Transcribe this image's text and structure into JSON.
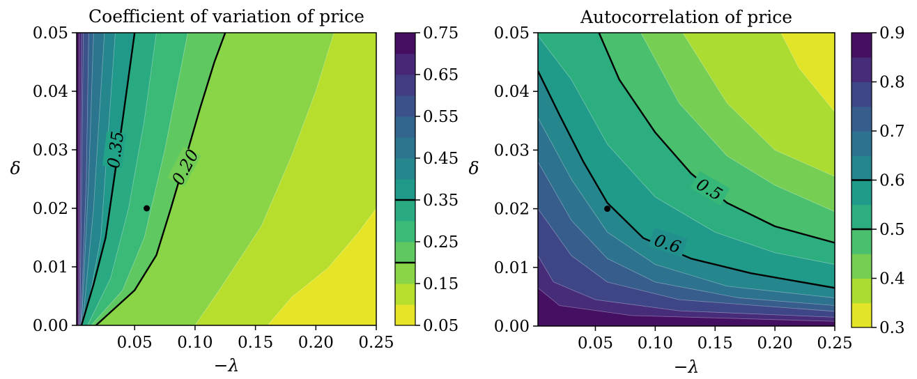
{
  "chart_data": [
    {
      "type": "heatmap",
      "title": "Coefficient of variation of price",
      "xlabel": "−λ",
      "ylabel": "δ",
      "xlim": [
        0.002,
        0.25
      ],
      "ylim": [
        0.0,
        0.05
      ],
      "xticks": [
        "0.05",
        "0.10",
        "0.15",
        "0.20",
        "0.25"
      ],
      "yticks": [
        "0.00",
        "0.01",
        "0.02",
        "0.03",
        "0.04",
        "0.05"
      ],
      "colorbar": {
        "ticks": [
          "0.05",
          "0.15",
          "0.25",
          "0.35",
          "0.45",
          "0.55",
          "0.65",
          "0.75"
        ],
        "range": [
          0.05,
          0.75
        ],
        "step": 0.05,
        "reversed_viridis": true,
        "contour_marks": [
          0.2,
          0.35
        ]
      },
      "contour_lines": [
        {
          "level": 0.35,
          "label": "0.35",
          "points": [
            [
              0.006,
              0.0
            ],
            [
              0.016,
              0.007
            ],
            [
              0.026,
              0.015
            ],
            [
              0.033,
              0.025
            ],
            [
              0.04,
              0.035
            ],
            [
              0.046,
              0.044
            ],
            [
              0.05,
              0.05
            ]
          ]
        },
        {
          "level": 0.2,
          "label": "0.20",
          "points": [
            [
              0.018,
              0.0
            ],
            [
              0.05,
              0.006
            ],
            [
              0.068,
              0.012
            ],
            [
              0.08,
              0.02
            ],
            [
              0.09,
              0.027
            ],
            [
              0.104,
              0.037
            ],
            [
              0.116,
              0.045
            ],
            [
              0.125,
              0.05
            ]
          ]
        }
      ],
      "band_boundaries": [
        {
          "level": 0.7,
          "points": [
            [
              0.0035,
              0.0
            ],
            [
              0.004,
              0.05
            ]
          ]
        },
        {
          "level": 0.65,
          "points": [
            [
              0.0042,
              0.0
            ],
            [
              0.006,
              0.05
            ]
          ]
        },
        {
          "level": 0.6,
          "points": [
            [
              0.0048,
              0.0
            ],
            [
              0.0075,
              0.05
            ]
          ]
        },
        {
          "level": 0.55,
          "points": [
            [
              0.0055,
              0.0
            ],
            [
              0.01,
              0.025
            ],
            [
              0.012,
              0.05
            ]
          ]
        },
        {
          "level": 0.5,
          "points": [
            [
              0.006,
              0.0
            ],
            [
              0.012,
              0.025
            ],
            [
              0.016,
              0.05
            ]
          ]
        },
        {
          "level": 0.45,
          "points": [
            [
              0.0068,
              0.0
            ],
            [
              0.016,
              0.02
            ],
            [
              0.025,
              0.05
            ]
          ]
        },
        {
          "level": 0.4,
          "points": [
            [
              0.0085,
              0.0
            ],
            [
              0.022,
              0.015
            ],
            [
              0.034,
              0.05
            ]
          ]
        },
        {
          "level": 0.35,
          "points": [
            [
              0.006,
              0.0
            ],
            [
              0.016,
              0.007
            ],
            [
              0.026,
              0.015
            ],
            [
              0.033,
              0.025
            ],
            [
              0.04,
              0.035
            ],
            [
              0.046,
              0.044
            ],
            [
              0.05,
              0.05
            ]
          ]
        },
        {
          "level": 0.3,
          "points": [
            [
              0.011,
              0.0
            ],
            [
              0.03,
              0.008
            ],
            [
              0.045,
              0.02
            ],
            [
              0.058,
              0.035
            ],
            [
              0.068,
              0.05
            ]
          ]
        },
        {
          "level": 0.25,
          "points": [
            [
              0.014,
              0.0
            ],
            [
              0.04,
              0.006
            ],
            [
              0.058,
              0.015
            ],
            [
              0.075,
              0.03
            ],
            [
              0.094,
              0.05
            ]
          ]
        },
        {
          "level": 0.2,
          "points": [
            [
              0.018,
              0.0
            ],
            [
              0.05,
              0.006
            ],
            [
              0.068,
              0.012
            ],
            [
              0.08,
              0.02
            ],
            [
              0.09,
              0.027
            ],
            [
              0.104,
              0.037
            ],
            [
              0.116,
              0.045
            ],
            [
              0.125,
              0.05
            ]
          ]
        },
        {
          "level": 0.15,
          "points": [
            [
              0.1,
              0.0
            ],
            [
              0.12,
              0.006
            ],
            [
              0.155,
              0.017
            ],
            [
              0.18,
              0.029
            ],
            [
              0.2,
              0.04
            ],
            [
              0.215,
              0.05
            ]
          ]
        },
        {
          "level": 0.1,
          "points": [
            [
              0.25,
              0.02
            ],
            [
              0.235,
              0.0158
            ],
            [
              0.21,
              0.0098
            ],
            [
              0.18,
              0.0048
            ],
            [
              0.16,
              0.0
            ]
          ]
        }
      ],
      "point": {
        "x": 0.06,
        "y": 0.02
      }
    },
    {
      "type": "heatmap",
      "title": "Autocorrelation of price",
      "xlabel": "−λ",
      "ylabel": "δ",
      "xlim": [
        0.002,
        0.25
      ],
      "ylim": [
        0.0,
        0.05
      ],
      "xticks": [
        "0.05",
        "0.10",
        "0.15",
        "0.20",
        "0.25"
      ],
      "yticks": [
        "0.00",
        "0.01",
        "0.02",
        "0.03",
        "0.04",
        "0.05"
      ],
      "colorbar": {
        "ticks": [
          "0.3",
          "0.4",
          "0.5",
          "0.6",
          "0.7",
          "0.8",
          "0.9"
        ],
        "range": [
          0.3,
          0.9
        ],
        "step": 0.05,
        "reversed_viridis": true,
        "contour_marks": [
          0.5,
          0.6
        ]
      },
      "contour_lines": [
        {
          "level": 0.5,
          "label": "0.5",
          "points": [
            [
              0.053,
              0.05
            ],
            [
              0.07,
              0.042
            ],
            [
              0.1,
              0.033
            ],
            [
              0.13,
              0.026
            ],
            [
              0.16,
              0.021
            ],
            [
              0.2,
              0.017
            ],
            [
              0.25,
              0.0142
            ]
          ]
        },
        {
          "level": 0.6,
          "label": "0.6",
          "points": [
            [
              0.002,
              0.0435
            ],
            [
              0.02,
              0.036
            ],
            [
              0.04,
              0.028
            ],
            [
              0.06,
              0.021
            ],
            [
              0.09,
              0.015
            ],
            [
              0.13,
              0.0115
            ],
            [
              0.18,
              0.009
            ],
            [
              0.25,
              0.0065
            ]
          ]
        }
      ],
      "band_boundaries": [
        {
          "level": 0.35,
          "points": [
            [
              0.205,
              0.05
            ],
            [
              0.22,
              0.044
            ],
            [
              0.25,
              0.0365
            ]
          ]
        },
        {
          "level": 0.4,
          "points": [
            [
              0.123,
              0.05
            ],
            [
              0.16,
              0.038
            ],
            [
              0.2,
              0.03
            ],
            [
              0.25,
              0.0255
            ]
          ]
        },
        {
          "level": 0.45,
          "points": [
            [
              0.088,
              0.05
            ],
            [
              0.12,
              0.038
            ],
            [
              0.16,
              0.029
            ],
            [
              0.2,
              0.024
            ],
            [
              0.25,
              0.0195
            ]
          ]
        },
        {
          "level": 0.5,
          "points": [
            [
              0.053,
              0.05
            ],
            [
              0.07,
              0.042
            ],
            [
              0.1,
              0.033
            ],
            [
              0.13,
              0.026
            ],
            [
              0.16,
              0.021
            ],
            [
              0.2,
              0.017
            ],
            [
              0.25,
              0.0142
            ]
          ]
        },
        {
          "level": 0.55,
          "points": [
            [
              0.002,
              0.0495
            ],
            [
              0.03,
              0.042
            ],
            [
              0.06,
              0.031
            ],
            [
              0.1,
              0.022
            ],
            [
              0.15,
              0.016
            ],
            [
              0.2,
              0.0125
            ],
            [
              0.25,
              0.0105
            ]
          ]
        },
        {
          "level": 0.6,
          "points": [
            [
              0.002,
              0.0435
            ],
            [
              0.02,
              0.036
            ],
            [
              0.04,
              0.028
            ],
            [
              0.06,
              0.021
            ],
            [
              0.09,
              0.015
            ],
            [
              0.13,
              0.0115
            ],
            [
              0.18,
              0.009
            ],
            [
              0.25,
              0.0065
            ]
          ]
        },
        {
          "level": 0.65,
          "points": [
            [
              0.002,
              0.0355
            ],
            [
              0.03,
              0.025
            ],
            [
              0.06,
              0.016
            ],
            [
              0.1,
              0.0105
            ],
            [
              0.16,
              0.0068
            ],
            [
              0.25,
              0.0048
            ]
          ]
        },
        {
          "level": 0.7,
          "points": [
            [
              0.002,
              0.028
            ],
            [
              0.03,
              0.018
            ],
            [
              0.06,
              0.0115
            ],
            [
              0.1,
              0.0075
            ],
            [
              0.17,
              0.0048
            ],
            [
              0.25,
              0.0035
            ]
          ]
        },
        {
          "level": 0.75,
          "points": [
            [
              0.002,
              0.02
            ],
            [
              0.03,
              0.012
            ],
            [
              0.06,
              0.0075
            ],
            [
              0.12,
              0.0045
            ],
            [
              0.25,
              0.0025
            ]
          ]
        },
        {
          "level": 0.8,
          "points": [
            [
              0.002,
              0.012
            ],
            [
              0.015,
              0.0075
            ],
            [
              0.05,
              0.0045
            ],
            [
              0.12,
              0.0026
            ],
            [
              0.25,
              0.0015
            ]
          ]
        },
        {
          "level": 0.85,
          "points": [
            [
              0.002,
              0.0065
            ],
            [
              0.02,
              0.0035
            ],
            [
              0.08,
              0.0018
            ],
            [
              0.25,
              0.0008
            ]
          ]
        }
      ],
      "point": {
        "x": 0.06,
        "y": 0.02
      }
    }
  ]
}
